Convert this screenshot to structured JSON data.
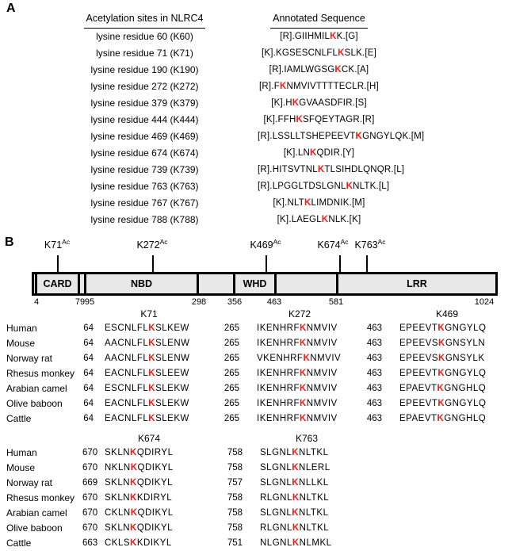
{
  "colors": {
    "highlight_red": "#e6211a",
    "domain_fill": "#e8e8e8"
  },
  "panelA": {
    "label": "A",
    "col1_header": "Acetylation sites in NLRC4",
    "col2_header": "Annotated Sequence",
    "rows": [
      {
        "site": "lysine residue 60 (K60)",
        "pre": "[R].GIIHMIL",
        "k": "K",
        "post": "K.[G]"
      },
      {
        "site": "lysine residue 71 (K71)",
        "pre": "[K].KGSESCNLFL",
        "k": "K",
        "post": "SLK.[E]"
      },
      {
        "site": "lysine residue 190 (K190)",
        "pre": "[R].IAMLWGSG",
        "k": "K",
        "post": "CK.[A]"
      },
      {
        "site": "lysine residue 272 (K272)",
        "pre": "[R].F",
        "k": "K",
        "post": "NMVIVTTTTECLR.[H]"
      },
      {
        "site": "lysine residue 379 (K379)",
        "pre": "[K].H",
        "k": "K",
        "post": "GVAASDFIR.[S]"
      },
      {
        "site": "lysine residue 444 (K444)",
        "pre": "[K].FFH",
        "k": "K",
        "post": "SFQEYTAGR.[R]"
      },
      {
        "site": "lysine residue 469 (K469)",
        "pre": "[R].LSSLLTSHEPEEVT",
        "k": "K",
        "post": "GNGYLQK.[M]"
      },
      {
        "site": "lysine residue 674 (K674)",
        "pre": "[K].LN",
        "k": "K",
        "post": "QDIR.[Y]"
      },
      {
        "site": "lysine residue 739 (K739)",
        "pre": "[R].HITSVTNL",
        "k": "K",
        "post": "TLSIHDLQNQR.[L]"
      },
      {
        "site": "lysine residue 763 (K763)",
        "pre": "[R].LPGGLTDSLGNL",
        "k": "K",
        "post": "NLTK.[L]"
      },
      {
        "site": "lysine residue 767 (K767)",
        "pre": "[K].NLT",
        "k": "K",
        "post": "LIMDNIK.[M]"
      },
      {
        "site": "lysine residue 788 (K788)",
        "pre": "[K].LAEGL",
        "k": "K",
        "post": "NLK.[K]"
      }
    ]
  },
  "panelB": {
    "label": "B",
    "sites": [
      {
        "name": "K71",
        "sup": "Ac"
      },
      {
        "name": "K272",
        "sup": "Ac"
      },
      {
        "name": "K469",
        "sup": "Ac"
      },
      {
        "name": "K674",
        "sup": "Ac"
      },
      {
        "name": "K763",
        "sup": "Ac"
      }
    ],
    "domains": [
      "CARD",
      "NBD",
      "WHD",
      "LRR"
    ],
    "positions": [
      "4",
      "79",
      "95",
      "298",
      "356",
      "463",
      "581",
      "1024"
    ]
  },
  "alignment1": {
    "headers": [
      "K71",
      "K272",
      "K469"
    ],
    "rows": [
      {
        "species": "Human",
        "cells": [
          {
            "num": "64",
            "pre": "ESCNLFL",
            "k": "K",
            "post": "SLKEW"
          },
          {
            "num": "265",
            "pre": "IKENHRF",
            "k": "K",
            "post": "NMVIV"
          },
          {
            "num": "463",
            "pre": "EPEEVT",
            "k": "K",
            "post": "GNGYLQ"
          }
        ]
      },
      {
        "species": "Mouse",
        "cells": [
          {
            "num": "64",
            "pre": "AACNLFL",
            "k": "K",
            "post": "SLENW"
          },
          {
            "num": "265",
            "pre": "IKENHRF",
            "k": "K",
            "post": "NMVIV"
          },
          {
            "num": "463",
            "pre": "EPEEVS",
            "k": "K",
            "post": "GNSYLN"
          }
        ]
      },
      {
        "species": "Norway rat",
        "cells": [
          {
            "num": "64",
            "pre": "AACNLFL",
            "k": "K",
            "post": "SLENW"
          },
          {
            "num": "265",
            "pre": "VKENHRF",
            "k": "K",
            "post": "NMVIV"
          },
          {
            "num": "463",
            "pre": "EPEEVS",
            "k": "K",
            "post": "GNSYLK"
          }
        ]
      },
      {
        "species": "Rhesus monkey",
        "cells": [
          {
            "num": "64",
            "pre": "EACNLFL",
            "k": "K",
            "post": "SLEEW"
          },
          {
            "num": "265",
            "pre": "IKENHRF",
            "k": "K",
            "post": "NMVIV"
          },
          {
            "num": "463",
            "pre": "EPEEVT",
            "k": "K",
            "post": "GNGYLQ"
          }
        ]
      },
      {
        "species": "Arabian camel",
        "cells": [
          {
            "num": "64",
            "pre": "ESCNLFL",
            "k": "K",
            "post": "SLEKW"
          },
          {
            "num": "265",
            "pre": "IKENHRF",
            "k": "K",
            "post": "NMVIV"
          },
          {
            "num": "463",
            "pre": "EPAEVT",
            "k": "K",
            "post": "GNGHLQ"
          }
        ]
      },
      {
        "species": "Olive baboon",
        "cells": [
          {
            "num": "64",
            "pre": "EACNLFL",
            "k": "K",
            "post": "SLEKW"
          },
          {
            "num": "265",
            "pre": "IKENHRF",
            "k": "K",
            "post": "NMVIV"
          },
          {
            "num": "463",
            "pre": "EPEEVT",
            "k": "K",
            "post": "GNGYLQ"
          }
        ]
      },
      {
        "species": "Cattle",
        "cells": [
          {
            "num": "64",
            "pre": "EACNLFL",
            "k": "K",
            "post": "SLEKW"
          },
          {
            "num": "265",
            "pre": "IKENHRF",
            "k": "K",
            "post": "NMVIV"
          },
          {
            "num": "463",
            "pre": "EPAEVT",
            "k": "K",
            "post": "GNGHLQ"
          }
        ]
      }
    ]
  },
  "alignment2": {
    "headers": [
      "K674",
      "K763"
    ],
    "rows": [
      {
        "species": "Human",
        "cells": [
          {
            "num": "670",
            "pre": "SKLN",
            "k": "K",
            "post": "QDIRYL"
          },
          {
            "num": "758",
            "pre": "SLGNL",
            "k": "K",
            "post": "NLTKL"
          }
        ]
      },
      {
        "species": "Mouse",
        "cells": [
          {
            "num": "670",
            "pre": "NKLN",
            "k": "K",
            "post": "QDIKYL"
          },
          {
            "num": "758",
            "pre": "SLGNL",
            "k": "K",
            "post": "NLERL"
          }
        ]
      },
      {
        "species": "Norway rat",
        "cells": [
          {
            "num": "669",
            "pre": "SKLN",
            "k": "K",
            "post": "QDIKYL"
          },
          {
            "num": "757",
            "pre": "SLGNL",
            "k": "K",
            "post": "NLLKL"
          }
        ]
      },
      {
        "species": "Rhesus monkey",
        "cells": [
          {
            "num": "670",
            "pre": "SKLN",
            "k": "K",
            "post": "KDIRYL"
          },
          {
            "num": "758",
            "pre": "RLGNL",
            "k": "K",
            "post": "NLTKL"
          }
        ]
      },
      {
        "species": "Arabian camel",
        "cells": [
          {
            "num": "670",
            "pre": "CKLN",
            "k": "K",
            "post": "QDIKYL"
          },
          {
            "num": "758",
            "pre": "SLGNL",
            "k": "K",
            "post": "NLTKL"
          }
        ]
      },
      {
        "species": "Olive baboon",
        "cells": [
          {
            "num": "670",
            "pre": "SKLN",
            "k": "K",
            "post": "QDIKYL"
          },
          {
            "num": "758",
            "pre": "RLGNL",
            "k": "K",
            "post": "NLTKL"
          }
        ]
      },
      {
        "species": "Cattle",
        "cells": [
          {
            "num": "663",
            "pre": "CKLS",
            "k": "K",
            "post": "KDIKYL"
          },
          {
            "num": "751",
            "pre": "NLGNL",
            "k": "K",
            "post": "NLMKL"
          }
        ]
      }
    ]
  }
}
